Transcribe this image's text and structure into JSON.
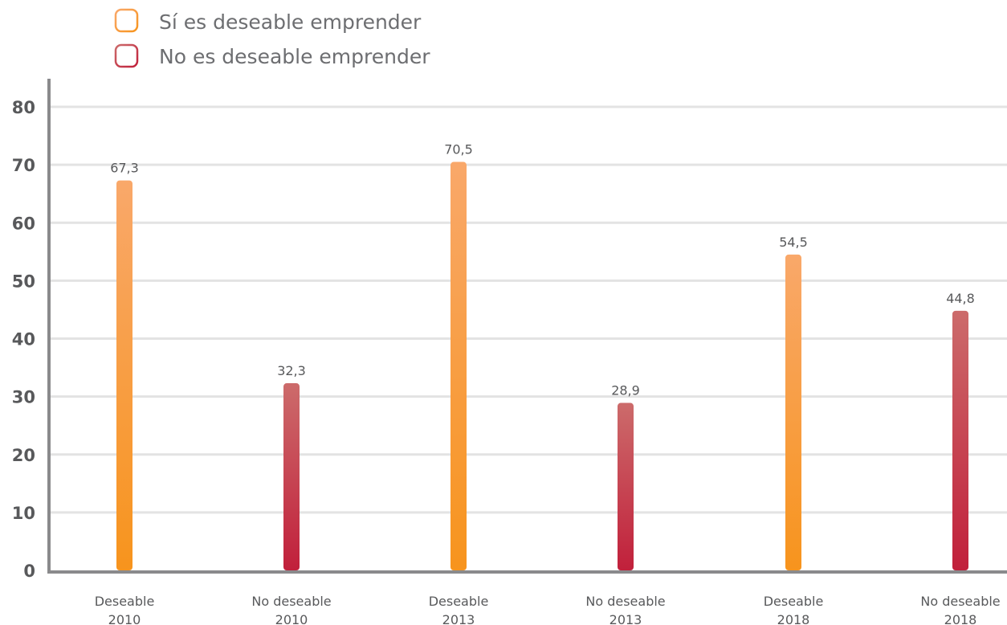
{
  "chart_data": {
    "type": "bar",
    "categories": [
      [
        "Deseable",
        "2010"
      ],
      [
        "No deseable",
        "2010"
      ],
      [
        "Deseable",
        "2013"
      ],
      [
        "No deseable",
        "2013"
      ],
      [
        "Deseable",
        "2018"
      ],
      [
        "No deseable",
        "2018"
      ]
    ],
    "values": [
      67.3,
      32.3,
      70.5,
      28.9,
      54.5,
      44.8
    ],
    "value_labels": [
      "67,3",
      "32,3",
      "70,5",
      "28,9",
      "54,5",
      "44,8"
    ],
    "bar_series": [
      0,
      1,
      0,
      1,
      0,
      1
    ],
    "series": [
      {
        "name": "Sí es deseable emprender",
        "color": "#f7941d",
        "color_light": "#f9a86a"
      },
      {
        "name": "No es deseable emprender",
        "color": "#c1203b",
        "color_light": "#cc6b6b"
      }
    ],
    "ylim": [
      0,
      80
    ],
    "yticks": [
      "0",
      "10",
      "20",
      "30",
      "40",
      "50",
      "60",
      "70",
      "80"
    ],
    "grid": true,
    "legend_position": "top-left",
    "xlabel": "",
    "ylabel": ""
  }
}
